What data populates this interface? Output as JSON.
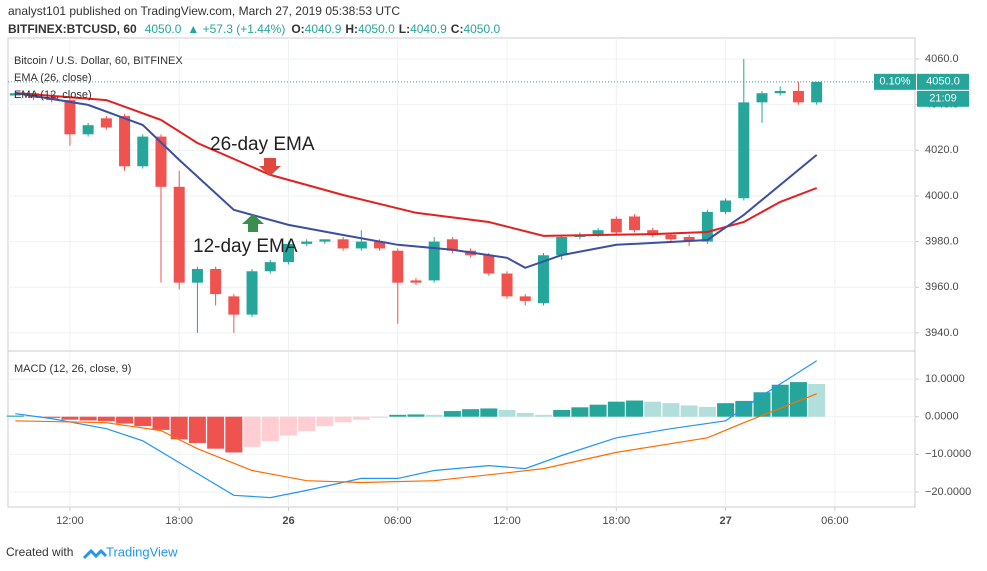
{
  "header": {
    "byline": "analyst101 published on TradingView.com, March 27, 2019 05:38:53 UTC",
    "symbol": "BITFINEX:BTCUSD, 60",
    "price": "4050.0",
    "change": "▲ +57.3 (+1.44%)",
    "ohlc": [
      {
        "label": "O:",
        "value": "4040.9"
      },
      {
        "label": "H:",
        "value": "4050.0"
      },
      {
        "label": "L:",
        "value": "4040.9"
      },
      {
        "label": "C:",
        "value": "4050.0"
      }
    ]
  },
  "chart_data": [
    {
      "type": "candlestick",
      "title": "Bitcoin / U.S. Dollar, 60, BITFINEX",
      "up_color": "#26a69a",
      "down_color": "#ef5350",
      "x": [
        0,
        1,
        2,
        3,
        4,
        5,
        6,
        7,
        8,
        9,
        10,
        11,
        12,
        13,
        14,
        15,
        16,
        17,
        18,
        19,
        20,
        21,
        22,
        23,
        24,
        25,
        26,
        27,
        28,
        29,
        30,
        31,
        32,
        33,
        34,
        35,
        36,
        37,
        38,
        39,
        40,
        41,
        42,
        43,
        44
      ],
      "open": [
        4044,
        4045,
        4043,
        4042,
        4027,
        4034,
        4035,
        4013,
        4026,
        4004,
        3962,
        3968,
        3956,
        3948,
        3967,
        3971,
        3979,
        3980,
        3981,
        3977,
        3980,
        3976,
        3963,
        3963,
        3981,
        3976,
        3974,
        3966,
        3956,
        3953,
        3974,
        3982,
        3983,
        3990,
        3991,
        3985,
        3983,
        3982,
        3980,
        3993,
        3999,
        4041,
        4045,
        4046,
        4041
      ],
      "high": [
        4046,
        4046,
        4045,
        4043,
        4032,
        4035,
        4036,
        4027,
        4027,
        4011,
        3969,
        3969,
        3957,
        3968,
        3972,
        3980,
        3981,
        3981,
        3982,
        3985,
        3981,
        3977,
        3964,
        3982,
        3982,
        3977,
        3975,
        3967,
        3957,
        3975,
        3983,
        3984,
        3986,
        3991,
        3992,
        3986,
        3984,
        3983,
        3994,
        3999,
        4060,
        4046,
        4048,
        4050,
        4050
      ],
      "low": [
        4043,
        4042,
        4041,
        4022,
        4026,
        4029,
        4011,
        4012,
        3962,
        3959,
        3940,
        3952,
        3940,
        3947,
        3966,
        3970,
        3978,
        3979,
        3976,
        3976,
        3976,
        3944,
        3961,
        3962,
        3975,
        3973,
        3965,
        3955,
        3952,
        3952,
        3972,
        3981,
        3982,
        3983,
        3984,
        3982,
        3980,
        3978,
        3979,
        3992,
        3998,
        4032,
        4044,
        4040,
        4040
      ],
      "close": [
        4045,
        4043,
        4042,
        4027,
        4031,
        4030,
        4013,
        4026,
        4004,
        3962,
        3968,
        3957,
        3948,
        3967,
        3971,
        3979,
        3980,
        3981,
        3977,
        3980,
        3977,
        3962,
        3962,
        3980,
        3976,
        3974,
        3966,
        3956,
        3954,
        3974,
        3982,
        3983,
        3985,
        3984,
        3985,
        3983,
        3981,
        3980,
        3993,
        3998,
        4041,
        4045,
        4046,
        4041,
        4050
      ],
      "series": [
        {
          "name": "EMA (26, close)",
          "color": "#e4201f",
          "x": [
            0,
            5,
            8,
            10,
            14,
            18,
            22,
            26,
            29,
            35,
            38,
            40,
            42,
            44
          ],
          "values": [
            4045.1,
            4042.0,
            4033.3,
            4023.2,
            4009.2,
            4000.4,
            3992.6,
            3988.6,
            3982.5,
            3983.3,
            3984.2,
            3988.6,
            3997.4,
            4003.5
          ]
        },
        {
          "name": "EMA (12, close)",
          "color": "#3c4fa0",
          "x": [
            0,
            4,
            7,
            9,
            12,
            15,
            18,
            21,
            24,
            27,
            28,
            30,
            33,
            38,
            40,
            44
          ],
          "values": [
            4045.1,
            4039.9,
            4031.1,
            4015.8,
            3993.9,
            3987.3,
            3982.9,
            3978.6,
            3976.4,
            3972.9,
            3968.5,
            3974.1,
            3978.6,
            3980.7,
            3991.7,
            4018.0
          ]
        }
      ],
      "annotations": [
        {
          "text": "26-day EMA"
        },
        {
          "text": "12-day EMA"
        }
      ],
      "last_price": {
        "value": 4050,
        "label": "4050.0",
        "change": "0.10%",
        "countdown": "21:09",
        "color": "#26a69a"
      },
      "xlim": [
        -0.4,
        49.4
      ],
      "xticks": [
        {
          "value": 3,
          "label": "12:00"
        },
        {
          "value": 9,
          "label": "18:00"
        },
        {
          "value": 15,
          "label": "26"
        },
        {
          "value": 21,
          "label": "06:00"
        },
        {
          "value": 27,
          "label": "12:00"
        },
        {
          "value": 33,
          "label": "18:00"
        },
        {
          "value": 39,
          "label": "27"
        },
        {
          "value": 45,
          "label": "06:00"
        }
      ],
      "ylim": [
        3932.5,
        4069.2
      ],
      "yticks": [
        {
          "value": 3940,
          "label": "3940.0"
        },
        {
          "value": 3960,
          "label": "3960.0"
        },
        {
          "value": 3980,
          "label": "3980.0"
        },
        {
          "value": 4000,
          "label": "4000.0"
        },
        {
          "value": 4020,
          "label": "4020.0"
        },
        {
          "value": 4040,
          "label": "4040.0"
        },
        {
          "value": 4060,
          "label": "4060.0"
        }
      ],
      "grid": true
    },
    {
      "type": "macd",
      "title": "MACD (12, 26, close, 9)",
      "histogram": {
        "values": [
          0.3,
          0.2,
          -0.3,
          -0.8,
          -1.0,
          -1.2,
          -1.8,
          -2.5,
          -3.5,
          -6.0,
          -7.0,
          -8.5,
          -9.5,
          -8.0,
          -6.5,
          -5.0,
          -3.8,
          -2.5,
          -1.5,
          -0.8,
          -0.3,
          0.5,
          0.6,
          0.5,
          1.5,
          2.0,
          2.2,
          1.8,
          1.0,
          0.5,
          1.8,
          2.5,
          3.2,
          4.0,
          4.3,
          4.0,
          3.6,
          3.0,
          2.6,
          3.6,
          4.2,
          6.5,
          8.5,
          9.2,
          8.7
        ],
        "colors": {
          "up_rising": "#26a69a",
          "up_falling": "#b2dfdb",
          "down_falling": "#ef5350",
          "down_rising": "#ffcdd2"
        }
      },
      "series": [
        {
          "name": "MACD",
          "color": "#2196f3",
          "x": [
            0,
            2,
            5,
            7,
            9,
            12,
            14,
            16,
            19,
            21,
            23,
            26,
            28,
            30,
            33,
            36,
            39,
            41,
            44
          ],
          "values": [
            0.8,
            -0.5,
            -3.2,
            -6.4,
            -12.2,
            -20.9,
            -21.5,
            -19.6,
            -16.4,
            -16.4,
            -14.3,
            -13.0,
            -13.8,
            -10.3,
            -5.6,
            -3.2,
            -1.1,
            5.6,
            14.9
          ]
        },
        {
          "name": "Signal",
          "color": "#ff6d00",
          "x": [
            0,
            5,
            8,
            10,
            13,
            16,
            19,
            23,
            27,
            29,
            33,
            38,
            40,
            44
          ],
          "values": [
            -1.1,
            -1.6,
            -3.7,
            -8.5,
            -14.3,
            -17.0,
            -17.5,
            -17.0,
            -14.9,
            -13.8,
            -9.5,
            -5.6,
            -1.6,
            6.1
          ]
        }
      ],
      "ylim": [
        -24.0,
        17.2
      ],
      "yticks": [
        {
          "value": 10,
          "label": "10.0000"
        },
        {
          "value": 0,
          "label": "0.0000"
        },
        {
          "value": -10,
          "label": "−10.0000"
        },
        {
          "value": -20,
          "label": "−20.0000"
        }
      ],
      "grid": true
    }
  ],
  "footer": {
    "prefix": "Created with",
    "brand": "TradingView"
  }
}
